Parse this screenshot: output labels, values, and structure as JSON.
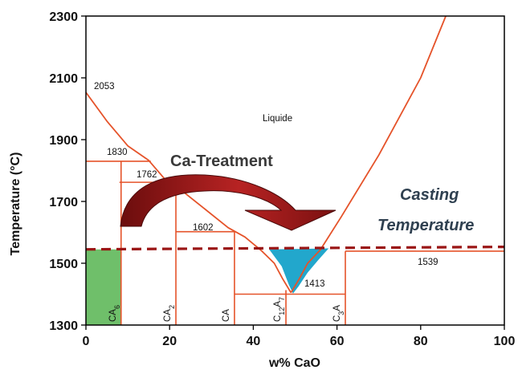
{
  "chart_data": {
    "type": "phase-diagram",
    "xlabel": "w% CaO",
    "ylabel": "Temperature (°C)",
    "xlim": [
      0,
      100
    ],
    "ylim": [
      1300,
      2300
    ],
    "xticks": [
      "0",
      "20",
      "40",
      "60",
      "80",
      "100"
    ],
    "yticks": [
      "1300",
      "1500",
      "1700",
      "1900",
      "2100",
      "2300"
    ],
    "grid": false,
    "line_color": "#e5532a",
    "liquidus_left": [
      [
        0,
        2053
      ],
      [
        5,
        1960
      ],
      [
        10,
        1880
      ],
      [
        15,
        1833
      ],
      [
        19,
        1770
      ],
      [
        22,
        1745
      ],
      [
        28,
        1680
      ],
      [
        34,
        1615
      ],
      [
        38,
        1585
      ],
      [
        42,
        1540
      ],
      [
        45,
        1500
      ],
      [
        47,
        1450
      ],
      [
        49,
        1405
      ]
    ],
    "liquidus_right": [
      [
        49,
        1405
      ],
      [
        51,
        1450
      ],
      [
        53,
        1500
      ],
      [
        56,
        1543
      ],
      [
        61,
        1650
      ],
      [
        70,
        1850
      ],
      [
        80,
        2100
      ],
      [
        86,
        2300
      ]
    ],
    "tie_lines": [
      {
        "x": [
          0,
          15.5
        ],
        "y": 1830
      },
      {
        "x": [
          8,
          20
        ],
        "y": 1762
      },
      {
        "x": [
          21.5,
          35.5
        ],
        "y": 1602
      },
      {
        "x": [
          35.5,
          62
        ],
        "y": 1400
      },
      {
        "x": [
          62,
          100
        ],
        "y": 1539
      }
    ],
    "compound_lines": [
      {
        "x": 8.4,
        "y": [
          1300,
          1830
        ]
      },
      {
        "x": 21.5,
        "y": [
          1300,
          1762
        ]
      },
      {
        "x": 35.5,
        "y": [
          1300,
          1602
        ]
      },
      {
        "x": 47.8,
        "y": [
          1300,
          1413
        ]
      },
      {
        "x": 62,
        "y": [
          1300,
          1539
        ]
      }
    ],
    "casting_temperature": {
      "y_start": 1545,
      "y_end": 1553,
      "color": "#9a1515"
    },
    "shaded_regions": [
      {
        "name": "solid",
        "color": "#6fbf6a",
        "polygon": [
          [
            0,
            1300
          ],
          [
            8.4,
            1300
          ],
          [
            8.4,
            1545
          ],
          [
            0,
            1545
          ]
        ]
      },
      {
        "name": "liquid-window",
        "color": "#22a7cc",
        "polygon": [
          [
            43.8,
            1545
          ],
          [
            58,
            1548
          ],
          [
            55.5,
            1510
          ],
          [
            53,
            1470
          ],
          [
            50.8,
            1425
          ],
          [
            49.5,
            1402
          ],
          [
            48.5,
            1430
          ],
          [
            46.8,
            1490
          ]
        ]
      }
    ],
    "annotations": {
      "liquide": "Liquide",
      "t2053": "2053",
      "t1830": "1830",
      "t1762": "1762",
      "t1602": "1602",
      "t1413": "1413",
      "t1539": "1539",
      "treatment": "Ca-Treatment",
      "casting1": "Casting",
      "casting2": "Temperature"
    },
    "phases": [
      {
        "base": "CA",
        "sub": "6",
        "x": 8.4
      },
      {
        "base": "CA",
        "sub": "2",
        "x": 21.5
      },
      {
        "base": "CA",
        "sub": "",
        "x": 35.5
      },
      {
        "base": "C",
        "sub": "12",
        "mid": "A",
        "sub2": "7",
        "x": 47.8
      },
      {
        "base": "C",
        "sub": "3",
        "mid": "A",
        "sub2": "",
        "x": 62
      }
    ]
  }
}
